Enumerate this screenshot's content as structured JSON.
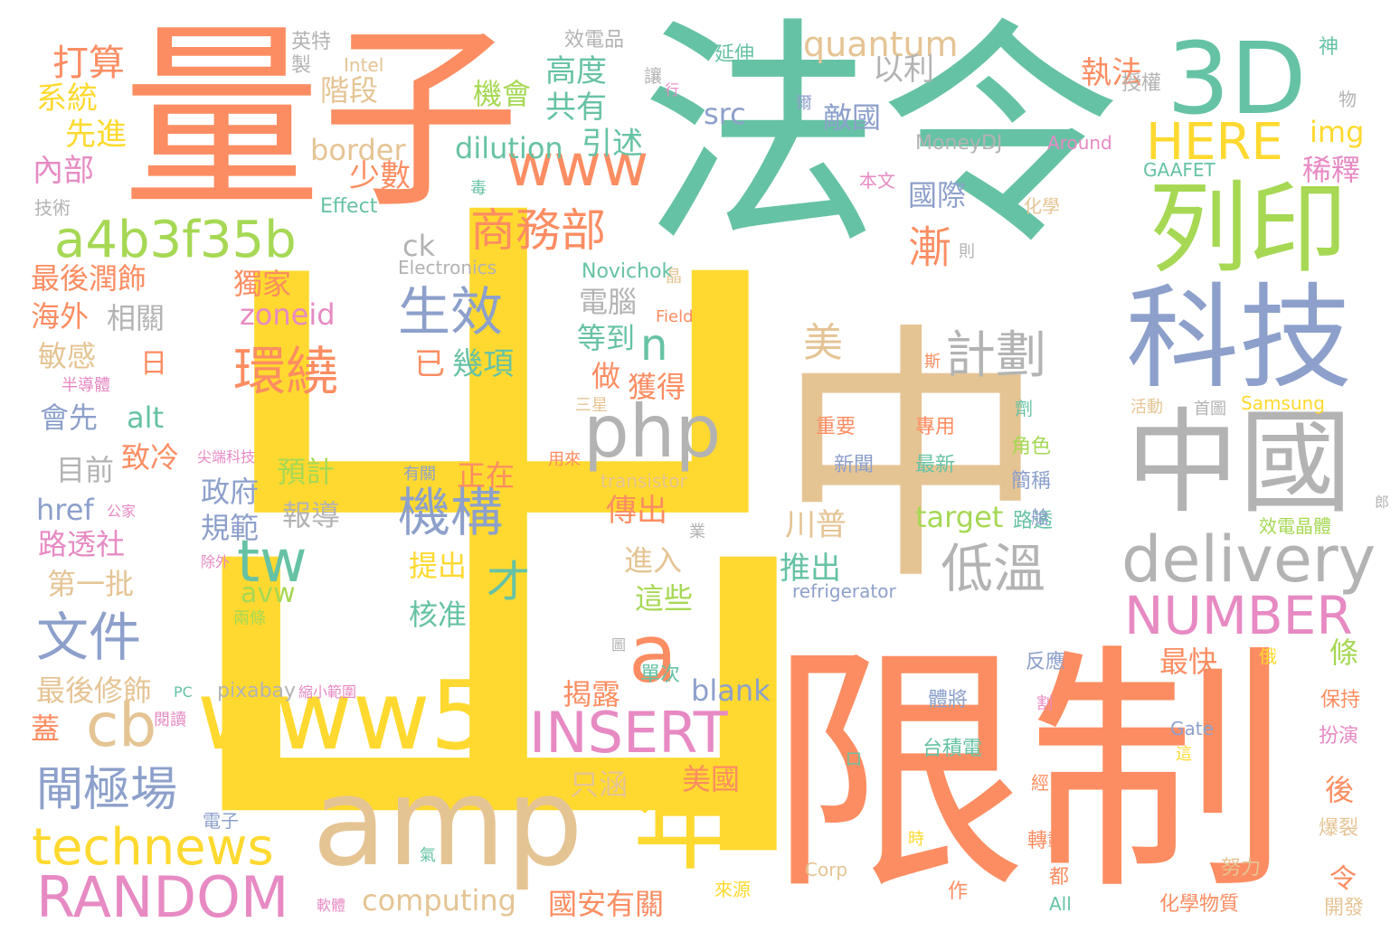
{
  "palette": {
    "teal": "#66c2a5",
    "orange": "#fc8d62",
    "blue": "#8da0cb",
    "pink": "#e78ac3",
    "green": "#a6d854",
    "yellow": "#ffd92f",
    "tan": "#e5c494",
    "gray": "#b3b3b3"
  },
  "words": [
    {
      "text": "出",
      "color": "yellow"
    },
    {
      "text": "中",
      "color": "tan"
    },
    {
      "text": "法令",
      "color": "teal"
    },
    {
      "text": "量子",
      "color": "orange"
    },
    {
      "text": "限制",
      "color": "orange"
    },
    {
      "text": "3D",
      "color": "teal"
    },
    {
      "text": "列印",
      "color": "green"
    },
    {
      "text": "科技",
      "color": "blue"
    },
    {
      "text": "中國",
      "color": "gray"
    },
    {
      "text": "amp",
      "color": "tan"
    },
    {
      "text": "www5",
      "color": "yellow"
    },
    {
      "text": "年",
      "color": "yellow"
    },
    {
      "text": "a4b3f35b",
      "color": "green"
    },
    {
      "text": "www",
      "color": "orange"
    },
    {
      "text": "商務部",
      "color": "orange"
    },
    {
      "text": "HERE",
      "color": "yellow"
    },
    {
      "text": "php",
      "color": "gray"
    },
    {
      "text": "delivery",
      "color": "gray"
    },
    {
      "text": "NUMBER",
      "color": "pink"
    },
    {
      "text": "INSERT",
      "color": "pink"
    },
    {
      "text": "RANDOM",
      "color": "pink"
    },
    {
      "text": "technews",
      "color": "yellow"
    },
    {
      "text": "機構",
      "color": "blue"
    },
    {
      "text": "生效",
      "color": "blue"
    },
    {
      "text": "環繞",
      "color": "orange"
    },
    {
      "text": "文件",
      "color": "blue"
    },
    {
      "text": "閘極場",
      "color": "blue"
    },
    {
      "text": "cb",
      "color": "tan"
    },
    {
      "text": "tw",
      "color": "teal"
    },
    {
      "text": "a",
      "color": "orange"
    },
    {
      "text": "n",
      "color": "teal"
    },
    {
      "text": "才",
      "color": "teal"
    },
    {
      "text": "低溫",
      "color": "gray"
    },
    {
      "text": "計劃",
      "color": "gray"
    },
    {
      "text": "漸",
      "color": "orange"
    },
    {
      "text": "quantum",
      "color": "tan"
    },
    {
      "text": "computing",
      "color": "tan"
    },
    {
      "text": "dilution",
      "color": "teal"
    },
    {
      "text": "border",
      "color": "tan"
    },
    {
      "text": "zoneid",
      "color": "pink"
    },
    {
      "text": "打算",
      "color": "orange"
    },
    {
      "text": "系統",
      "color": "yellow"
    },
    {
      "text": "先進",
      "color": "yellow"
    },
    {
      "text": "內部",
      "color": "pink"
    },
    {
      "text": "技術",
      "color": "gray"
    },
    {
      "text": "英特",
      "color": "gray"
    },
    {
      "text": "製",
      "color": "gray"
    },
    {
      "text": "Intel",
      "color": "tan"
    },
    {
      "text": "效電品",
      "color": "gray"
    },
    {
      "text": "階段",
      "color": "tan"
    },
    {
      "text": "高度",
      "color": "teal"
    },
    {
      "text": "共有",
      "color": "teal"
    },
    {
      "text": "機會",
      "color": "green"
    },
    {
      "text": "引述",
      "color": "teal"
    },
    {
      "text": "少數",
      "color": "orange"
    },
    {
      "text": "以利",
      "color": "gray"
    },
    {
      "text": "執法",
      "color": "orange"
    },
    {
      "text": "延伸",
      "color": "teal"
    },
    {
      "text": "讓",
      "color": "gray"
    },
    {
      "text": "行",
      "color": "pink"
    },
    {
      "text": "爾",
      "color": "blue"
    },
    {
      "text": "敵國",
      "color": "blue"
    },
    {
      "text": "國際",
      "color": "blue"
    },
    {
      "text": "src",
      "color": "blue"
    },
    {
      "text": "MoneyDJ",
      "color": "gray"
    },
    {
      "text": "Around",
      "color": "pink"
    },
    {
      "text": "授權",
      "color": "gray"
    },
    {
      "text": "神",
      "color": "teal"
    },
    {
      "text": "物",
      "color": "gray"
    },
    {
      "text": "img",
      "color": "yellow"
    },
    {
      "text": "稀釋",
      "color": "pink"
    },
    {
      "text": "GAAFET",
      "color": "teal"
    },
    {
      "text": "本文",
      "color": "pink"
    },
    {
      "text": "化學",
      "color": "tan"
    },
    {
      "text": "毒",
      "color": "teal"
    },
    {
      "text": "Effect",
      "color": "teal"
    },
    {
      "text": "ck",
      "color": "gray"
    },
    {
      "text": "Electronics",
      "color": "gray"
    },
    {
      "text": "Novichok",
      "color": "teal"
    },
    {
      "text": "晶",
      "color": "tan"
    },
    {
      "text": "則",
      "color": "gray"
    },
    {
      "text": "最後潤飾",
      "color": "orange"
    },
    {
      "text": "獨家",
      "color": "orange"
    },
    {
      "text": "海外",
      "color": "orange"
    },
    {
      "text": "相關",
      "color": "gray"
    },
    {
      "text": "敏感",
      "color": "tan"
    },
    {
      "text": "日",
      "color": "orange"
    },
    {
      "text": "半導體",
      "color": "pink"
    },
    {
      "text": "會先",
      "color": "blue"
    },
    {
      "text": "alt",
      "color": "teal"
    },
    {
      "text": "已",
      "color": "orange"
    },
    {
      "text": "幾項",
      "color": "teal"
    },
    {
      "text": "電腦",
      "color": "gray"
    },
    {
      "text": "等到",
      "color": "teal"
    },
    {
      "text": "做",
      "color": "orange"
    },
    {
      "text": "獲得",
      "color": "orange"
    },
    {
      "text": "Field",
      "color": "orange"
    },
    {
      "text": "美",
      "color": "tan"
    },
    {
      "text": "斯",
      "color": "orange"
    },
    {
      "text": "三星",
      "color": "tan"
    },
    {
      "text": "活動",
      "color": "tan"
    },
    {
      "text": "首圖",
      "color": "gray"
    },
    {
      "text": "Samsung",
      "color": "yellow"
    },
    {
      "text": "劑",
      "color": "teal"
    },
    {
      "text": "重要",
      "color": "orange"
    },
    {
      "text": "專用",
      "color": "orange"
    },
    {
      "text": "新聞",
      "color": "blue"
    },
    {
      "text": "最新",
      "color": "teal"
    },
    {
      "text": "角色",
      "color": "green"
    },
    {
      "text": "簡稱",
      "color": "blue"
    },
    {
      "text": "目前",
      "color": "gray"
    },
    {
      "text": "致冷",
      "color": "orange"
    },
    {
      "text": "尖端科技",
      "color": "pink"
    },
    {
      "text": "預計",
      "color": "green"
    },
    {
      "text": "有關",
      "color": "blue"
    },
    {
      "text": "用來",
      "color": "orange"
    },
    {
      "text": "transistor",
      "color": "tan"
    },
    {
      "text": "正在",
      "color": "orange"
    },
    {
      "text": "政府",
      "color": "blue"
    },
    {
      "text": "href",
      "color": "blue"
    },
    {
      "text": "公家",
      "color": "pink"
    },
    {
      "text": "報導",
      "color": "gray"
    },
    {
      "text": "規範",
      "color": "blue"
    },
    {
      "text": "傳出",
      "color": "orange"
    },
    {
      "text": "川普",
      "color": "tan"
    },
    {
      "text": "target",
      "color": "green"
    },
    {
      "text": "推出",
      "color": "teal"
    },
    {
      "text": "路透",
      "color": "teal"
    },
    {
      "text": "艙",
      "color": "blue"
    },
    {
      "text": "效電晶體",
      "color": "green"
    },
    {
      "text": "路透社",
      "color": "pink"
    },
    {
      "text": "第一批",
      "color": "tan"
    },
    {
      "text": "除外",
      "color": "pink"
    },
    {
      "text": "avw",
      "color": "green"
    },
    {
      "text": "兩條",
      "color": "green"
    },
    {
      "text": "提出",
      "color": "yellow"
    },
    {
      "text": "進入",
      "color": "tan"
    },
    {
      "text": "這些",
      "color": "green"
    },
    {
      "text": "refrigerator",
      "color": "blue"
    },
    {
      "text": "核准",
      "color": "teal"
    },
    {
      "text": "業",
      "color": "gray"
    },
    {
      "text": "條",
      "color": "green"
    },
    {
      "text": "最快",
      "color": "orange"
    },
    {
      "text": "反應",
      "color": "blue"
    },
    {
      "text": "俄",
      "color": "yellow"
    },
    {
      "text": "保持",
      "color": "orange"
    },
    {
      "text": "最後修飾",
      "color": "tan"
    },
    {
      "text": "PC",
      "color": "teal"
    },
    {
      "text": "pixabay",
      "color": "gray"
    },
    {
      "text": "縮小範圍",
      "color": "pink"
    },
    {
      "text": "單次",
      "color": "teal"
    },
    {
      "text": "揭露",
      "color": "orange"
    },
    {
      "text": "blank",
      "color": "blue"
    },
    {
      "text": "體將",
      "color": "blue"
    },
    {
      "text": "割",
      "color": "pink"
    },
    {
      "text": "Gate",
      "color": "blue"
    },
    {
      "text": "扮演",
      "color": "pink"
    },
    {
      "text": "蓋",
      "color": "orange"
    },
    {
      "text": "閱讀",
      "color": "pink"
    },
    {
      "text": "口",
      "color": "teal"
    },
    {
      "text": "台積電",
      "color": "teal"
    },
    {
      "text": "只涵",
      "color": "tan"
    },
    {
      "text": "美國",
      "color": "orange"
    },
    {
      "text": "經",
      "color": "orange"
    },
    {
      "text": "這",
      "color": "yellow"
    },
    {
      "text": "後",
      "color": "orange"
    },
    {
      "text": "電子",
      "color": "blue"
    },
    {
      "text": "爆裂",
      "color": "tan"
    },
    {
      "text": "時",
      "color": "yellow"
    },
    {
      "text": "轉載",
      "color": "orange"
    },
    {
      "text": "氣",
      "color": "teal"
    },
    {
      "text": "Corp",
      "color": "tan"
    },
    {
      "text": "都",
      "color": "orange"
    },
    {
      "text": "努力",
      "color": "tan"
    },
    {
      "text": "來源",
      "color": "yellow"
    },
    {
      "text": "作",
      "color": "orange"
    },
    {
      "text": "All",
      "color": "teal"
    },
    {
      "text": "令",
      "color": "orange"
    },
    {
      "text": "國安有關",
      "color": "orange"
    },
    {
      "text": "化學物質",
      "color": "orange"
    },
    {
      "text": "軟體",
      "color": "pink"
    },
    {
      "text": "開發",
      "color": "tan"
    },
    {
      "text": "圖",
      "color": "gray"
    },
    {
      "text": "郎",
      "color": "gray"
    }
  ]
}
